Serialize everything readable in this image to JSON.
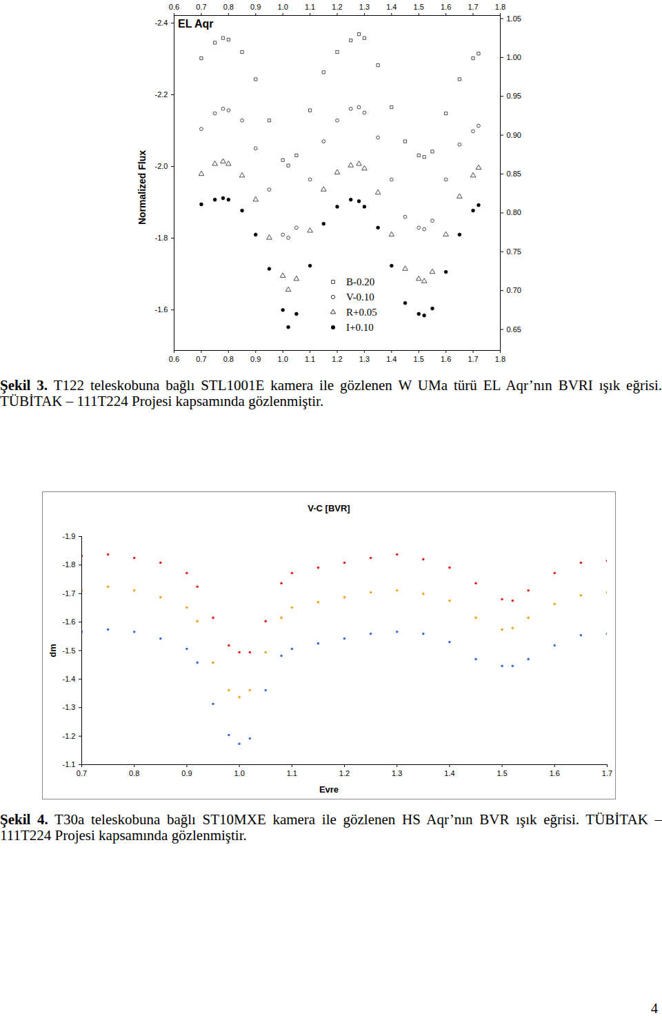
{
  "chart_data": [
    {
      "type": "scatter",
      "title": "EL Aqr",
      "ylabel": "Normalized Flux",
      "x": [
        0.7,
        0.75,
        0.78,
        0.8,
        0.85,
        0.9,
        0.95,
        1.0,
        1.02,
        1.05,
        1.1,
        1.15,
        1.2,
        1.25,
        1.28,
        1.3,
        1.35,
        1.4,
        1.45,
        1.5,
        1.52,
        1.55,
        1.6,
        1.65,
        1.7,
        1.72
      ],
      "xlim": [
        0.6,
        1.8
      ],
      "xticks": [
        0.6,
        0.7,
        0.8,
        0.9,
        {
          "value": 1,
          "label": "1.0"
        },
        1.1,
        1.2,
        1.3,
        1.4,
        1.5,
        1.6,
        1.7,
        1.8
      ],
      "ylim": [
        -1.487,
        -2.421
      ],
      "yticks": [
        -2.4,
        -2.2,
        {
          "value": -2,
          "label": "-2.0"
        },
        -1.8,
        -1.6
      ],
      "y2lim": [
        0.623,
        1.054
      ],
      "y2ticks": [
        {
          "value": 0.65,
          "label": "0.65"
        },
        {
          "value": 0.7,
          "label": "0.70"
        },
        0.75,
        {
          "value": 0.8,
          "label": "0.80"
        },
        0.85,
        {
          "value": 0.9,
          "label": "0.90"
        },
        0.95,
        {
          "value": 1,
          "label": "1.00"
        },
        1.05
      ],
      "grid": false,
      "legend": "bottom",
      "series": [
        {
          "name": "B-0.20",
          "color": "#000000",
          "marker": "square",
          "axis": "y2",
          "values": [
            0.999,
            1.019,
            1.025,
            1.023,
            1.007,
            0.972,
            0.919,
            0.868,
            0.861,
            0.874,
            0.932,
            0.981,
            1.007,
            1.022,
            1.03,
            1.025,
            0.99,
            0.936,
            0.892,
            0.874,
            0.872,
            0.879,
            0.928,
            0.972,
            0.999,
            1.005
          ]
        },
        {
          "name": "V-0.10",
          "color": "#000000",
          "marker": "circle",
          "axis": "y2",
          "values": [
            0.908,
            0.928,
            0.934,
            0.932,
            0.919,
            0.883,
            0.83,
            0.772,
            0.768,
            0.781,
            0.843,
            0.892,
            0.919,
            0.934,
            0.936,
            0.929,
            0.897,
            0.843,
            0.795,
            0.781,
            0.779,
            0.79,
            0.843,
            0.888,
            0.905,
            0.912
          ]
        },
        {
          "name": "R+0.05",
          "color": "#000000",
          "marker": "triangle",
          "axis": "y2",
          "values": [
            0.85,
            0.863,
            0.866,
            0.863,
            0.848,
            0.817,
            0.768,
            0.719,
            0.701,
            0.715,
            0.777,
            0.83,
            0.852,
            0.861,
            0.863,
            0.857,
            0.826,
            0.772,
            0.728,
            0.715,
            0.712,
            0.724,
            0.772,
            0.821,
            0.848,
            0.858
          ]
        },
        {
          "name": "I+0.10",
          "color": "#000000",
          "marker": "dot",
          "axis": "y2",
          "values": [
            0.811,
            0.817,
            0.819,
            0.817,
            0.803,
            0.772,
            0.728,
            0.675,
            0.653,
            0.67,
            0.732,
            0.786,
            0.808,
            0.817,
            0.815,
            0.808,
            0.781,
            0.732,
            0.684,
            0.67,
            0.668,
            0.677,
            0.724,
            0.772,
            0.803,
            0.81
          ]
        }
      ],
      "caption": {
        "label": "Şekil 3.",
        "text": "T122 teleskobuna bağlı STL1001E kamera ile gözlenen W UMa türü EL Aqr’nın BVRI ışık eğrisi. TÜBİTAK – 111T224 Projesi kapsamında gözlenmiştir."
      }
    },
    {
      "type": "scatter",
      "title": "V-C [BVR]",
      "xlabel": "Evre",
      "ylabel": "dm",
      "x": [
        0.7,
        0.75,
        0.8,
        0.85,
        0.9,
        0.92,
        0.95,
        0.98,
        1.0,
        1.02,
        1.05,
        1.08,
        1.1,
        1.15,
        1.2,
        1.25,
        1.3,
        1.35,
        1.4,
        1.45,
        1.5,
        1.52,
        1.55,
        1.6,
        1.65,
        1.7
      ],
      "xlim": [
        0.7,
        1.7
      ],
      "xticks": [
        0.7,
        0.8,
        0.9,
        {
          "value": 1,
          "label": "1.0"
        },
        1.1,
        1.2,
        1.3,
        1.4,
        1.5,
        1.6,
        1.7
      ],
      "ylim": [
        -1.1,
        -1.9
      ],
      "yticks": [
        -1.9,
        -1.8,
        -1.7,
        -1.6,
        -1.5,
        -1.4,
        -1.3,
        -1.2,
        -1.1
      ],
      "grid": false,
      "series": [
        {
          "color": "#e0201c",
          "marker": "dot",
          "values": [
            -1.832,
            -1.837,
            -1.825,
            -1.808,
            -1.772,
            -1.724,
            -1.615,
            -1.518,
            -1.494,
            -1.494,
            -1.603,
            -1.736,
            -1.772,
            -1.791,
            -1.808,
            -1.825,
            -1.837,
            -1.82,
            -1.791,
            -1.736,
            -1.68,
            -1.675,
            -1.711,
            -1.772,
            -1.808,
            -1.815
          ]
        },
        {
          "color": "#f2a31e",
          "marker": "dot",
          "values": [
            -1.711,
            -1.724,
            -1.711,
            -1.687,
            -1.651,
            -1.603,
            -1.458,
            -1.361,
            -1.337,
            -1.361,
            -1.494,
            -1.615,
            -1.651,
            -1.67,
            -1.687,
            -1.704,
            -1.711,
            -1.699,
            -1.675,
            -1.615,
            -1.574,
            -1.579,
            -1.615,
            -1.663,
            -1.694,
            -1.704
          ]
        },
        {
          "color": "#3b6fd6",
          "marker": "dot",
          "values": [
            -1.566,
            -1.574,
            -1.566,
            -1.542,
            -1.506,
            -1.458,
            -1.313,
            -1.204,
            -1.173,
            -1.192,
            -1.361,
            -1.482,
            -1.506,
            -1.525,
            -1.542,
            -1.559,
            -1.566,
            -1.559,
            -1.53,
            -1.47,
            -1.446,
            -1.446,
            -1.47,
            -1.518,
            -1.554,
            -1.559
          ]
        }
      ],
      "caption": {
        "label": "Şekil 4.",
        "text": "T30a teleskobuna bağlı ST10MXE kamera  ile gözlenen HS Aqr’nın BVR ışık eğrisi. TÜBİTAK – 111T224 Projesi kapsamında gözlenmiştir."
      }
    }
  ],
  "page_number": "4"
}
